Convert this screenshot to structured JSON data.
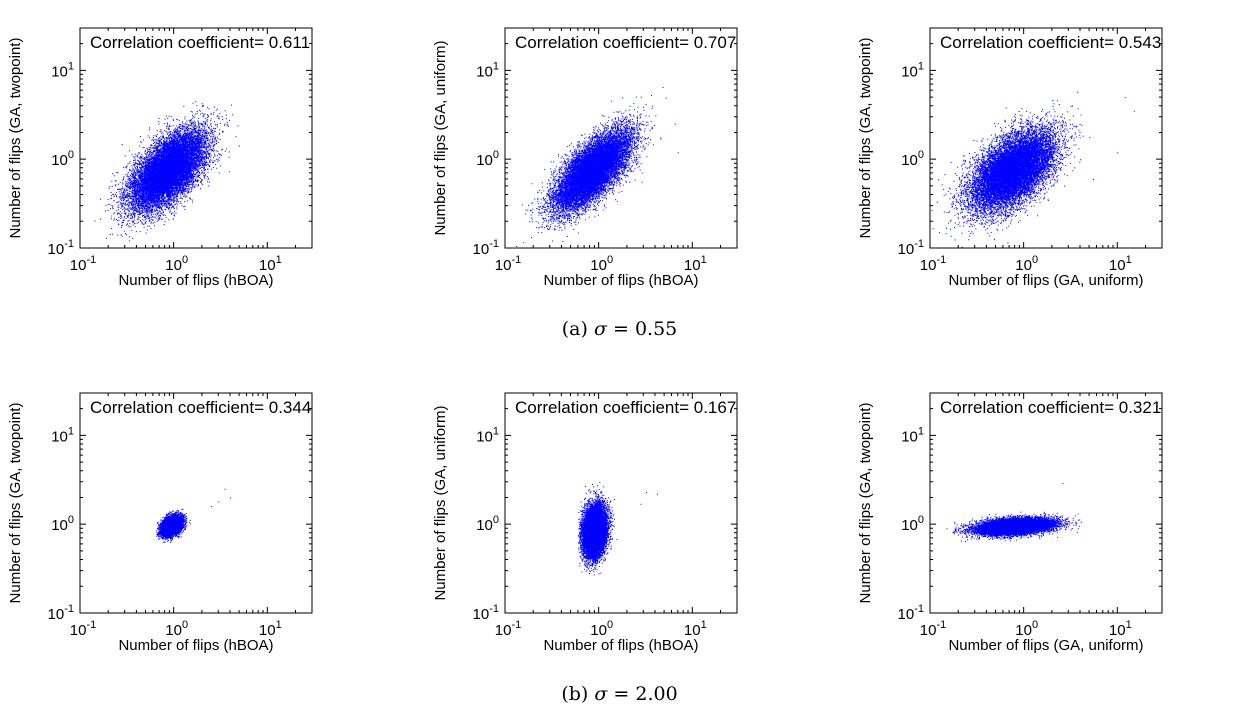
{
  "captions": [
    {
      "label": "(a)",
      "symbol": "σ",
      "value": "= 0.55"
    },
    {
      "label": "(b)",
      "symbol": "σ",
      "value": "= 2.00"
    }
  ],
  "chart_data": [
    {
      "type": "scatter",
      "xlabel": "Number of flips (hBOA)",
      "ylabel": "Number of flips (GA, twopoint)",
      "annotation": "Correlation coefficient= 0.611",
      "xscale": "log",
      "yscale": "log",
      "xlim": [
        0.1,
        30
      ],
      "ylim": [
        0.1,
        30
      ],
      "color": "#0000ff",
      "points": {
        "n": 14000,
        "x_median": 0.85,
        "x_log10_sd": 0.2,
        "y_median": 0.75,
        "y_log10_sd": 0.22,
        "correlation": 0.611,
        "x_range": [
          0.12,
          7.5
        ],
        "y_range": [
          0.1,
          7.5
        ]
      },
      "outliers": [
        [
          4.8,
          2.4
        ],
        [
          3.5,
          2.5
        ],
        [
          1.7,
          4.5
        ]
      ]
    },
    {
      "type": "scatter",
      "xlabel": "Number of flips (hBOA)",
      "ylabel": "Number of flips (GA, uniform)",
      "annotation": "Correlation coefficient= 0.707",
      "xscale": "log",
      "yscale": "log",
      "xlim": [
        0.1,
        30
      ],
      "ylim": [
        0.1,
        30
      ],
      "color": "#0000ff",
      "points": {
        "n": 14000,
        "x_median": 0.85,
        "x_log10_sd": 0.2,
        "y_median": 0.75,
        "y_log10_sd": 0.22,
        "correlation": 0.707,
        "x_range": [
          0.12,
          7.5
        ],
        "y_range": [
          0.1,
          7.5
        ]
      },
      "outliers": [
        [
          6.5,
          2.5
        ],
        [
          4.8,
          6.5
        ],
        [
          7.0,
          1.2
        ]
      ]
    },
    {
      "type": "scatter",
      "xlabel": "Number of flips (GA, uniform)",
      "ylabel": "Number of flips (GA, twopoint)",
      "annotation": "Correlation coefficient= 0.543",
      "xscale": "log",
      "yscale": "log",
      "xlim": [
        0.1,
        30
      ],
      "ylim": [
        0.1,
        30
      ],
      "color": "#0000ff",
      "points": {
        "n": 14000,
        "x_median": 0.75,
        "x_log10_sd": 0.22,
        "y_median": 0.75,
        "y_log10_sd": 0.22,
        "correlation": 0.543,
        "x_range": [
          0.1,
          7.5
        ],
        "y_range": [
          0.1,
          7.5
        ]
      },
      "outliers": [
        [
          15,
          3.5
        ],
        [
          12,
          5.0
        ],
        [
          10,
          1.2
        ],
        [
          5.5,
          0.6
        ]
      ]
    },
    {
      "type": "scatter",
      "xlabel": "Number of flips (hBOA)",
      "ylabel": "Number of flips (GA, twopoint)",
      "annotation": "Correlation coefficient= 0.344",
      "xscale": "log",
      "yscale": "log",
      "xlim": [
        0.1,
        30
      ],
      "ylim": [
        0.1,
        30
      ],
      "color": "#0000ff",
      "points": {
        "n": 9000,
        "x_median": 0.95,
        "x_log10_sd": 0.05,
        "y_median": 0.97,
        "y_log10_sd": 0.05,
        "correlation": 0.344,
        "x_range": [
          0.6,
          4.5
        ],
        "y_range": [
          0.5,
          3.0
        ]
      },
      "outliers": [
        [
          3.5,
          2.5
        ],
        [
          4.0,
          2.0
        ],
        [
          3.0,
          1.8
        ],
        [
          2.5,
          1.6
        ]
      ]
    },
    {
      "type": "scatter",
      "xlabel": "Number of flips (hBOA)",
      "ylabel": "Number of flips (GA, uniform)",
      "annotation": "Correlation coefficient= 0.167",
      "xscale": "log",
      "yscale": "log",
      "xlim": [
        0.1,
        30
      ],
      "ylim": [
        0.1,
        30
      ],
      "color": "#0000ff",
      "points": {
        "n": 12000,
        "x_median": 0.9,
        "x_log10_sd": 0.06,
        "y_median": 0.85,
        "y_log10_sd": 0.14,
        "correlation": 0.167,
        "x_range": [
          0.6,
          4.5
        ],
        "y_range": [
          0.15,
          4.2
        ]
      },
      "outliers": [
        [
          3.2,
          2.3
        ],
        [
          4.2,
          2.2
        ],
        [
          2.8,
          1.7
        ]
      ]
    },
    {
      "type": "scatter",
      "xlabel": "Number of flips (GA, uniform)",
      "ylabel": "Number of flips (GA, twopoint)",
      "annotation": "Correlation coefficient= 0.321",
      "xscale": "log",
      "yscale": "log",
      "xlim": [
        0.1,
        30
      ],
      "ylim": [
        0.1,
        30
      ],
      "color": "#0000ff",
      "points": {
        "n": 12000,
        "x_median": 0.8,
        "x_log10_sd": 0.2,
        "y_median": 0.95,
        "y_log10_sd": 0.045,
        "correlation": 0.321,
        "x_range": [
          0.15,
          4.5
        ],
        "y_range": [
          0.5,
          3.0
        ]
      },
      "outliers": [
        [
          0.15,
          0.9
        ],
        [
          0.2,
          0.85
        ],
        [
          2.6,
          2.9
        ]
      ]
    }
  ]
}
